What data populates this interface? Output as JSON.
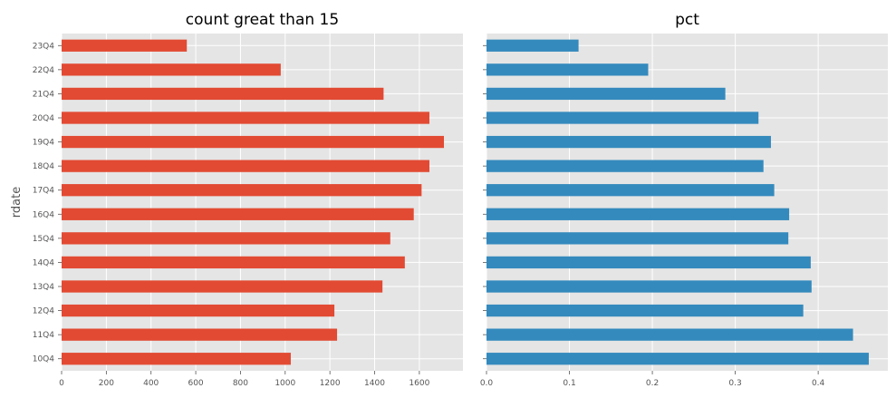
{
  "chart_data": [
    {
      "type": "bar",
      "orientation": "horizontal",
      "title": "count great than 15",
      "ylabel": "rdate",
      "xlabel": "",
      "categories": [
        "10Q4",
        "11Q4",
        "12Q4",
        "13Q4",
        "14Q4",
        "15Q4",
        "16Q4",
        "17Q4",
        "18Q4",
        "19Q4",
        "20Q4",
        "21Q4",
        "22Q4",
        "23Q4"
      ],
      "values": [
        1025,
        1232,
        1220,
        1435,
        1535,
        1470,
        1575,
        1610,
        1645,
        1710,
        1645,
        1440,
        980,
        560
      ],
      "xlim": [
        0,
        1795
      ],
      "xticks": [
        0,
        200,
        400,
        600,
        800,
        1000,
        1200,
        1400,
        1600
      ],
      "color": "#E24A33",
      "grid": true
    },
    {
      "type": "bar",
      "orientation": "horizontal",
      "title": "pct",
      "ylabel": "",
      "xlabel": "",
      "categories": [
        "10Q4",
        "11Q4",
        "12Q4",
        "13Q4",
        "14Q4",
        "15Q4",
        "16Q4",
        "17Q4",
        "18Q4",
        "19Q4",
        "20Q4",
        "21Q4",
        "22Q4",
        "23Q4"
      ],
      "values": [
        0.461,
        0.442,
        0.382,
        0.392,
        0.391,
        0.364,
        0.365,
        0.347,
        0.334,
        0.343,
        0.328,
        0.288,
        0.195,
        0.111
      ],
      "xlim": [
        0,
        0.484
      ],
      "xticks": [
        0.0,
        0.1,
        0.2,
        0.3,
        0.4
      ],
      "color": "#348ABD",
      "grid": true
    }
  ],
  "style": {
    "plot_background": "#E5E5E5",
    "grid_color": "#FFFFFF"
  }
}
